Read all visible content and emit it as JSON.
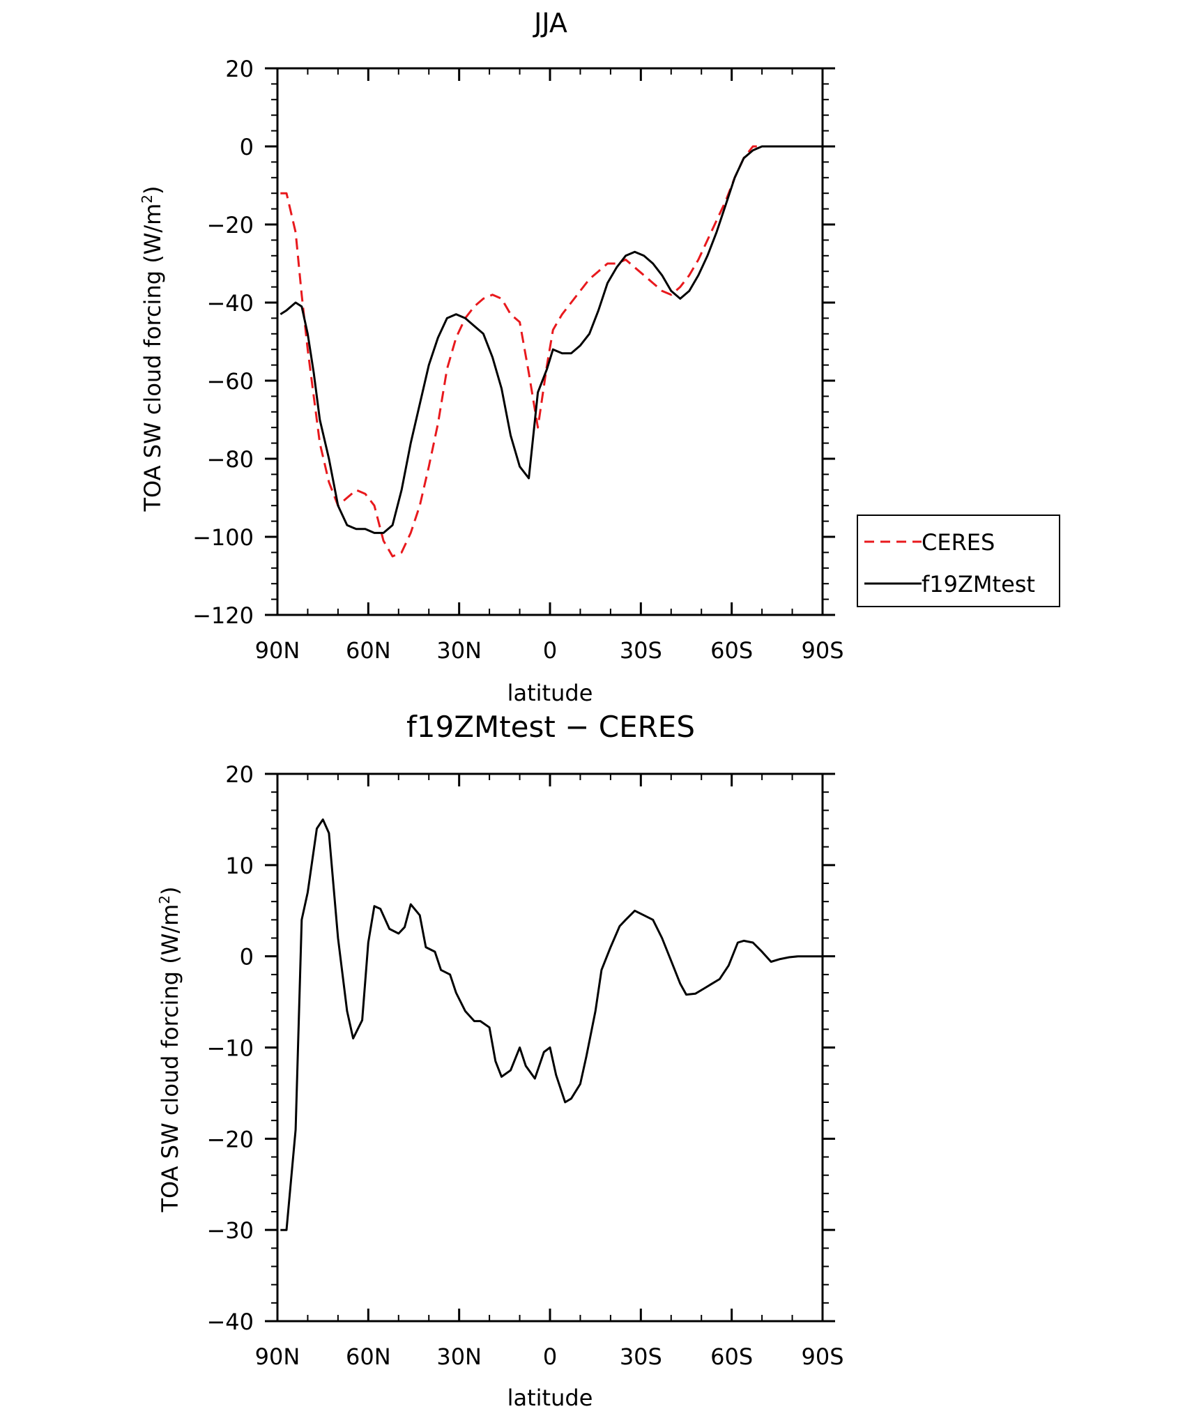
{
  "chart_data": [
    {
      "type": "line",
      "title": "JJA",
      "xlabel": "latitude",
      "ylabel": "TOA SW cloud forcing (W/m",
      "ylabel_sup": "2",
      "ylabel_close": ")",
      "xlim": [
        90,
        -90
      ],
      "ylim": [
        -120,
        20
      ],
      "x_ticks": [
        90,
        60,
        30,
        0,
        -30,
        -60,
        -90
      ],
      "x_tick_labels": [
        "90N",
        "60N",
        "30N",
        "0",
        "30S",
        "60S",
        "90S"
      ],
      "y_ticks": [
        20,
        0,
        -20,
        -40,
        -60,
        -80,
        -100,
        -120
      ],
      "y_tick_labels": [
        "20",
        "0",
        "−20",
        "−40",
        "−60",
        "−80",
        "−100",
        "−120"
      ],
      "legend_position": "right",
      "x": [
        89,
        87,
        84,
        82,
        80,
        78,
        76,
        73,
        70,
        67,
        64,
        61,
        58,
        55,
        52,
        49,
        46,
        43,
        40,
        37,
        34,
        31,
        28,
        25,
        22,
        19,
        16,
        13,
        10,
        7,
        4,
        1,
        -1,
        -4,
        -7,
        -10,
        -13,
        -16,
        -19,
        -22,
        -25,
        -28,
        -31,
        -34,
        -37,
        -40,
        -43,
        -46,
        -49,
        -52,
        -55,
        -58,
        -61,
        -64,
        -67,
        -70,
        -73,
        -76,
        -79,
        -82,
        -85,
        -88,
        -90
      ],
      "series": [
        {
          "name": "CERES",
          "color": "#e8191d",
          "dash": true,
          "values": [
            -12,
            -12,
            -22,
            -38,
            -52,
            -64,
            -76,
            -86,
            -92,
            -90,
            -88,
            -89,
            -92,
            -101,
            -105,
            -104,
            -99,
            -92,
            -82,
            -71,
            -57,
            -49,
            -44,
            -41,
            -39,
            -38,
            -39,
            -43,
            -45,
            -58,
            -72,
            -56,
            -47,
            -43,
            -40,
            -37,
            -34,
            -32,
            -30,
            -30,
            -29,
            -31,
            -33,
            -35,
            -37,
            -38,
            -36,
            -33,
            -29,
            -24,
            -19,
            -14,
            -8,
            -3,
            0,
            0,
            0,
            0,
            0,
            0,
            0,
            0,
            0
          ]
        },
        {
          "name": "f19ZMtest",
          "color": "#000000",
          "dash": false,
          "values": [
            -43,
            -42,
            -40,
            -41,
            -48,
            -58,
            -70,
            -80,
            -92,
            -97,
            -98,
            -98,
            -99,
            -99,
            -97,
            -88,
            -76,
            -66,
            -56,
            -49,
            -44,
            -43,
            -44,
            -46,
            -48,
            -54,
            -62,
            -74,
            -82,
            -85,
            -63,
            -57,
            -52,
            -53,
            -53,
            -51,
            -48,
            -42,
            -35,
            -31,
            -28,
            -27,
            -28,
            -30,
            -33,
            -37,
            -39,
            -37,
            -33,
            -28,
            -22,
            -15,
            -8,
            -3,
            -1,
            0,
            0,
            0,
            0,
            0,
            0,
            0,
            0
          ]
        }
      ]
    },
    {
      "type": "line",
      "title": "f19ZMtest − CERES",
      "xlabel": "latitude",
      "ylabel": "TOA SW cloud forcing (W/m",
      "ylabel_sup": "2",
      "ylabel_close": ")",
      "xlim": [
        90,
        -90
      ],
      "ylim": [
        -40,
        20
      ],
      "x_ticks": [
        90,
        60,
        30,
        0,
        -30,
        -60,
        -90
      ],
      "x_tick_labels": [
        "90N",
        "60N",
        "30N",
        "0",
        "30S",
        "60S",
        "90S"
      ],
      "y_ticks": [
        20,
        10,
        0,
        -10,
        -20,
        -30,
        -40
      ],
      "y_tick_labels": [
        "20",
        "10",
        "0",
        "−10",
        "−20",
        "−30",
        "−40"
      ],
      "x": [
        89,
        87,
        84,
        82,
        80,
        77,
        75,
        73,
        70,
        67,
        65,
        62,
        60,
        58,
        56,
        53,
        50,
        48,
        46,
        43,
        41,
        38,
        36,
        33,
        31,
        28,
        25,
        23,
        20,
        18,
        16,
        13,
        10,
        8,
        5,
        2,
        0,
        -2,
        -5,
        -7,
        -10,
        -12,
        -15,
        -17,
        -20,
        -23,
        -25,
        -28,
        -31,
        -34,
        -37,
        -40,
        -43,
        -45,
        -48,
        -51,
        -53,
        -56,
        -59,
        -62,
        -64,
        -67,
        -70,
        -73,
        -76,
        -79,
        -82,
        -90
      ],
      "series": [
        {
          "name": "",
          "color": "#000000",
          "dash": false,
          "values": [
            -30,
            -30,
            -19,
            4,
            7,
            14,
            15,
            13.5,
            2,
            -6,
            -9,
            -7,
            1.5,
            5.5,
            5.2,
            3,
            2.5,
            3.2,
            5.7,
            4.5,
            1,
            0.5,
            -1.5,
            -2,
            -4,
            -6,
            -7.1,
            -7.1,
            -7.8,
            -11.5,
            -13.2,
            -12.5,
            -10,
            -12,
            -13.4,
            -10.5,
            -10,
            -13,
            -16,
            -15.6,
            -14,
            -11,
            -6,
            -1.5,
            1,
            3.3,
            4,
            5,
            4.5,
            4,
            2,
            -0.5,
            -3,
            -4.2,
            -4.1,
            -3.5,
            -3.1,
            -2.5,
            -1,
            1.5,
            1.7,
            1.5,
            0.5,
            -0.6,
            -0.3,
            -0.1,
            0,
            0
          ]
        }
      ]
    }
  ]
}
